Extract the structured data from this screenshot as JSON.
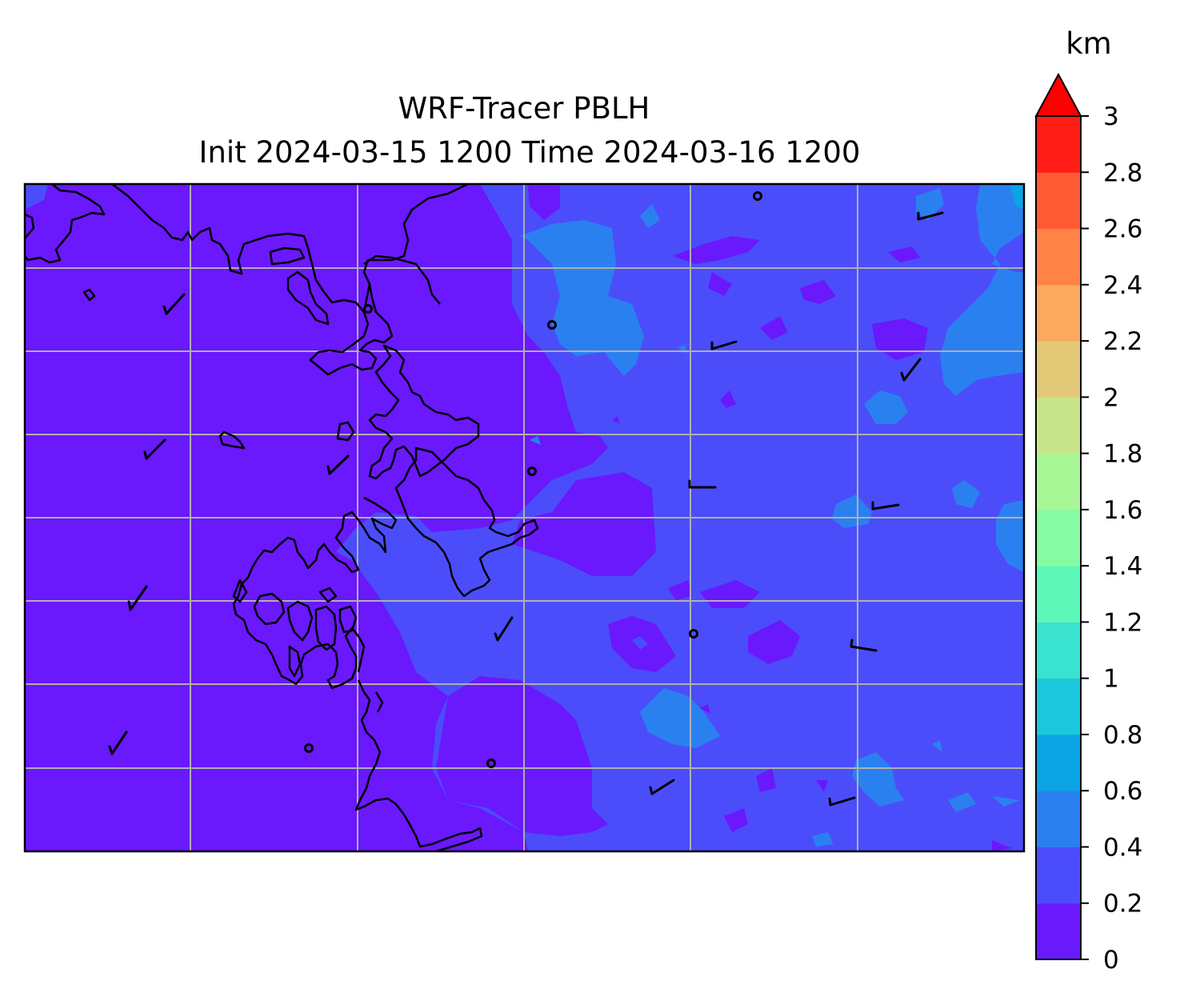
{
  "title": {
    "line1": "WRF-Tracer PBLH",
    "line2": "Init 2024-03-15 1200 Time 2024-03-16 1200"
  },
  "colorbar": {
    "unit": "km",
    "range": [
      0,
      3
    ],
    "extend": "max",
    "tick_labels": [
      "0",
      "0.2",
      "0.4",
      "0.6",
      "0.8",
      "1",
      "1.2",
      "1.4",
      "1.6",
      "1.8",
      "2",
      "2.2",
      "2.4",
      "2.6",
      "2.8",
      "3"
    ],
    "levels": [
      0,
      0.2,
      0.4,
      0.6,
      0.8,
      1.0,
      1.2,
      1.4,
      1.6,
      1.8,
      2.0,
      2.2,
      2.4,
      2.6,
      2.8,
      3.0
    ],
    "colors": [
      "#6a18fc",
      "#4b4dfb",
      "#2b80f0",
      "#0ba4e4",
      "#1ac7dd",
      "#3ae3cf",
      "#5df8b9",
      "#86fba4",
      "#a9f696",
      "#c8e48a",
      "#e3c878",
      "#fbaa5f",
      "#ff8347",
      "#ff5a33",
      "#ff1d16"
    ],
    "extend_color": "#ff0000"
  },
  "map": {
    "field": "PBLH",
    "dominant_color": "#6a18fc",
    "gridlines": true,
    "grid_color": "#b0b0b0",
    "coastline_color": "#000000",
    "features": [
      "coastline",
      "wind barbs",
      "calm-wind station circles",
      "lat/lon gridlines"
    ]
  }
}
